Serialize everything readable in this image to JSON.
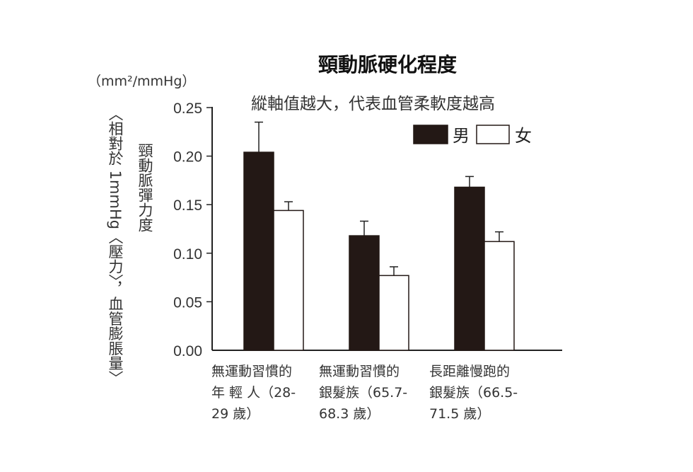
{
  "chart_data": {
    "type": "bar",
    "title": "頸動脈硬化程度",
    "subtitle": "縱軸值越大，代表血管柔軟度越高",
    "unit": "（mm²/mmHg）",
    "ylabel_outer": "︿相對於 1mmHg〈壓力〉，血管膨脹量﹀",
    "ylabel_inner": "頸動脈彈力度",
    "ylim": [
      0,
      0.25
    ],
    "yticks": [
      "0.00",
      "0.05",
      "0.10",
      "0.15",
      "0.20",
      "0.25"
    ],
    "categories": [
      [
        "無運動習慣的",
        "年 輕 人（28-",
        "29 歲）"
      ],
      [
        "無運動習慣的",
        "銀髮族（65.7-",
        "68.3 歲）"
      ],
      [
        "長距離慢跑的",
        "銀髮族（66.5-",
        "71.5 歲）"
      ]
    ],
    "series": [
      {
        "name": "男",
        "color": "#231815",
        "values": [
          0.204,
          0.118,
          0.168
        ],
        "error_upper": [
          0.235,
          0.133,
          0.179
        ]
      },
      {
        "name": "女",
        "color": "#ffffff",
        "values": [
          0.144,
          0.077,
          0.112
        ],
        "error_upper": [
          0.153,
          0.086,
          0.122
        ]
      }
    ],
    "legend": "top-right",
    "grid": false
  }
}
